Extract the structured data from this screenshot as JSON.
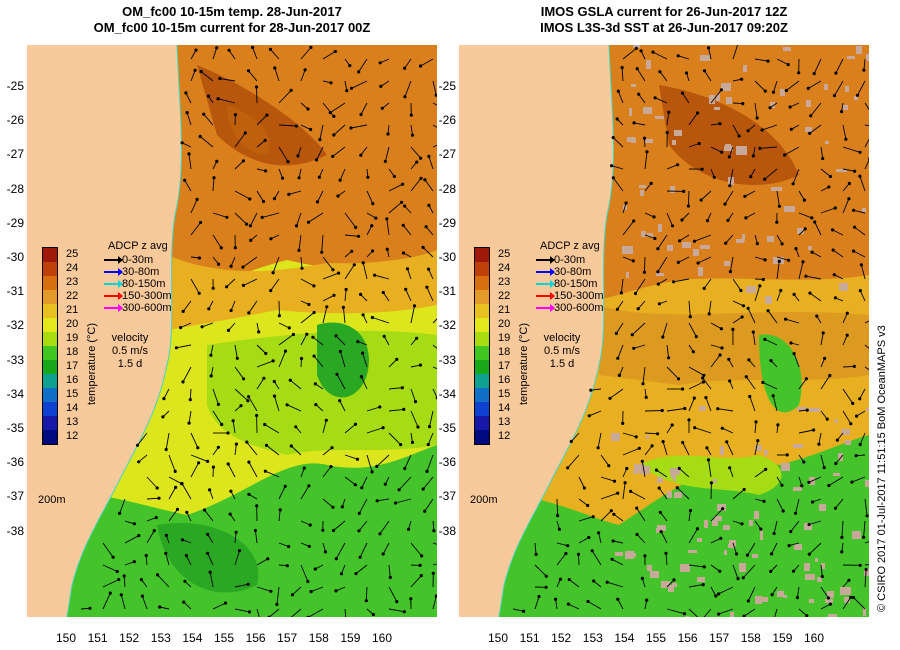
{
  "titles": {
    "left": {
      "line1": "OM_fc00 10-15m temp. 28-Jun-2017",
      "line2": "OM_fc00 10-15m current for 28-Jun-2017 00Z"
    },
    "right": {
      "line1": "IMOS GSLA current for 26-Jun-2017 12Z",
      "line2": "IMOS L3S-3d SST at 26-Jun-2017 09:20Z"
    }
  },
  "axes": {
    "latitude_labels": [
      "-25",
      "-26",
      "-27",
      "-28",
      "-29",
      "-30",
      "-31",
      "-32",
      "-33",
      "-34",
      "-35",
      "-36",
      "-37",
      "-38"
    ],
    "longitude_labels": [
      "150",
      "151",
      "152",
      "153",
      "154",
      "155",
      "156",
      "157",
      "158",
      "159",
      "160"
    ]
  },
  "legend": {
    "title": "ADCP z avg",
    "items": [
      {
        "label": "0-30m",
        "color": "#000000"
      },
      {
        "label": "30-80m",
        "color": "#0000ff"
      },
      {
        "label": "80-150m",
        "color": "#00d8d8"
      },
      {
        "label": "150-300m",
        "color": "#ff0000"
      },
      {
        "label": "300-600m",
        "color": "#ff00ff"
      }
    ],
    "velocity_label": "velocity",
    "velocity_scale": "0.5 m/s",
    "velocity_time": "1.5 d"
  },
  "colorbar": {
    "title": "temperature (°C)",
    "ticks": [
      "25",
      "24",
      "23",
      "22",
      "21",
      "20",
      "19",
      "18",
      "17",
      "16",
      "15",
      "14",
      "13",
      "12"
    ],
    "colors": [
      "#a01808",
      "#c0400a",
      "#d87010",
      "#e49a28",
      "#e8c020",
      "#e2e81c",
      "#a8dc10",
      "#40c820",
      "#18a818",
      "#10a090",
      "#1070c8",
      "#1040d0",
      "#1818a8",
      "#000a80"
    ]
  },
  "isobath_label": "200m",
  "credit": "© CSIRO 2017   01-Jul-2017 11:51:15 BoM OceanMAPS v3",
  "map_colors": {
    "land": "#f8c99a",
    "warm": "#d9801c",
    "hot": "#b8560c",
    "mid": "#e8b020",
    "yellow": "#dde61c",
    "lime": "#a6dc14",
    "green": "#44c42a",
    "dgreen": "#2aa824",
    "cloud": "#c8a898",
    "coast_line": "#40d8c0"
  }
}
